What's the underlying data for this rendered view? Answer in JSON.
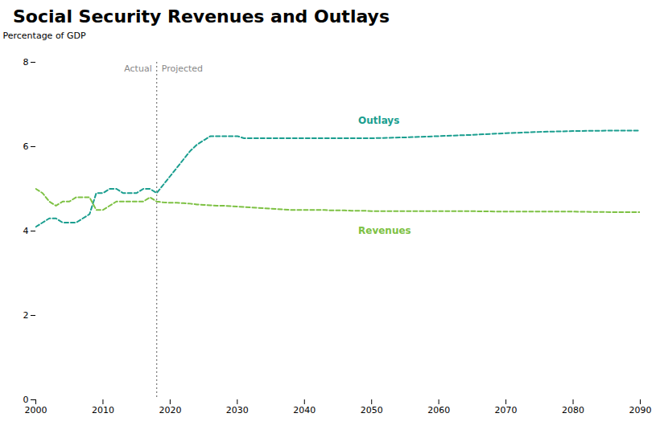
{
  "chart_data": {
    "type": "line",
    "title": "Social Security Revenues and Outlays",
    "ylabel": "Percentage of GDP",
    "xlim": [
      2000,
      2090
    ],
    "xticks": [
      2000,
      2010,
      2020,
      2030,
      2040,
      2050,
      2060,
      2070,
      2080,
      2090
    ],
    "ylim": [
      0,
      8
    ],
    "yticks": [
      0,
      2,
      4,
      6,
      8
    ],
    "grid": false,
    "series": [
      {
        "name": "Outlays",
        "color": "#1a9e8f",
        "line_style": "dashed",
        "x": [
          2000,
          2001,
          2002,
          2003,
          2004,
          2005,
          2006,
          2007,
          2008,
          2009,
          2010,
          2011,
          2012,
          2013,
          2014,
          2015,
          2016,
          2017,
          2018,
          2018,
          2019,
          2020,
          2021,
          2022,
          2023,
          2024,
          2025,
          2026,
          2027,
          2028,
          2029,
          2030,
          2031,
          2032,
          2033,
          2034,
          2035,
          2036,
          2037,
          2038,
          2039,
          2040,
          2041,
          2042,
          2043,
          2044,
          2045,
          2046,
          2047,
          2048,
          2049,
          2050,
          2055,
          2060,
          2065,
          2070,
          2075,
          2080,
          2085,
          2090
        ],
        "values": [
          4.1,
          4.2,
          4.3,
          4.3,
          4.2,
          4.2,
          4.2,
          4.3,
          4.4,
          4.9,
          4.9,
          5.0,
          5.0,
          4.9,
          4.9,
          4.9,
          5.0,
          5.0,
          4.9,
          4.9,
          5.1,
          5.3,
          5.5,
          5.7,
          5.9,
          6.05,
          6.15,
          6.25,
          6.25,
          6.25,
          6.25,
          6.25,
          6.2,
          6.2,
          6.2,
          6.2,
          6.2,
          6.2,
          6.2,
          6.2,
          6.2,
          6.2,
          6.2,
          6.2,
          6.2,
          6.2,
          6.2,
          6.2,
          6.2,
          6.2,
          6.2,
          6.2,
          6.22,
          6.25,
          6.28,
          6.32,
          6.35,
          6.37,
          6.38,
          6.38
        ]
      },
      {
        "name": "Revenues",
        "color": "#7dc143",
        "line_style": "dashed",
        "x": [
          2000,
          2001,
          2002,
          2003,
          2004,
          2005,
          2006,
          2007,
          2008,
          2009,
          2010,
          2011,
          2012,
          2013,
          2014,
          2015,
          2016,
          2017,
          2018,
          2018,
          2019,
          2020,
          2021,
          2022,
          2023,
          2024,
          2025,
          2026,
          2027,
          2028,
          2029,
          2030,
          2031,
          2032,
          2033,
          2034,
          2035,
          2036,
          2037,
          2038,
          2039,
          2040,
          2041,
          2042,
          2043,
          2044,
          2045,
          2046,
          2047,
          2048,
          2049,
          2050,
          2055,
          2060,
          2065,
          2070,
          2075,
          2080,
          2085,
          2090
        ],
        "values": [
          5.0,
          4.9,
          4.7,
          4.6,
          4.7,
          4.7,
          4.8,
          4.8,
          4.8,
          4.5,
          4.5,
          4.6,
          4.7,
          4.7,
          4.7,
          4.7,
          4.7,
          4.8,
          4.7,
          4.7,
          4.68,
          4.67,
          4.67,
          4.66,
          4.65,
          4.63,
          4.62,
          4.61,
          4.6,
          4.6,
          4.59,
          4.58,
          4.57,
          4.56,
          4.55,
          4.54,
          4.53,
          4.52,
          4.51,
          4.5,
          4.5,
          4.5,
          4.5,
          4.5,
          4.5,
          4.49,
          4.49,
          4.49,
          4.48,
          4.48,
          4.48,
          4.47,
          4.47,
          4.47,
          4.47,
          4.46,
          4.46,
          4.46,
          4.45,
          4.45
        ]
      }
    ],
    "divider": {
      "x": 2018,
      "labels": [
        "Actual",
        "Projected"
      ]
    },
    "annotations": [
      {
        "text": "Outlays",
        "x": 2048,
        "y": 6.55
      },
      {
        "text": "Revenues",
        "x": 2048,
        "y": 4.1
      }
    ]
  }
}
